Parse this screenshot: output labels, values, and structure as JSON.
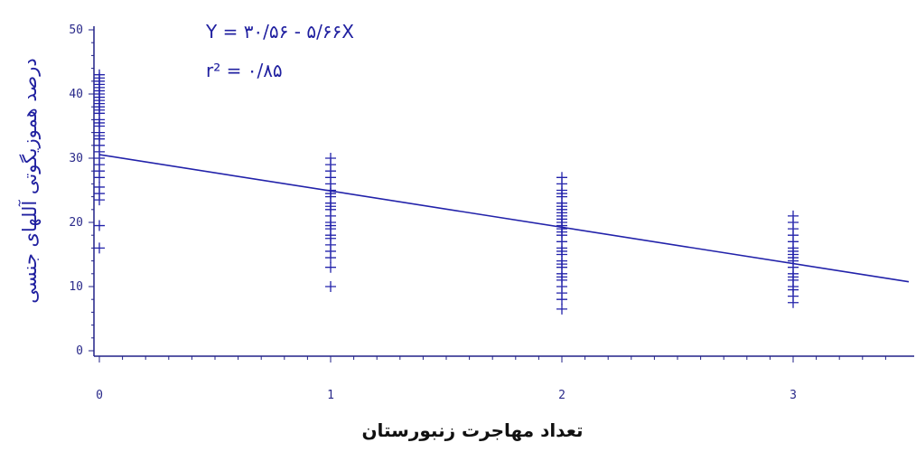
{
  "chart_data": {
    "type": "scatter",
    "title": "",
    "xlabel": "تعداد مهاجرت زنبورستان",
    "ylabel": "درصد هموزیگوتی آللهای جنسی",
    "xlim": [
      -0.05,
      3.5
    ],
    "ylim": [
      0,
      50
    ],
    "x_ticks": [
      {
        "value": 0,
        "label": "0"
      },
      {
        "value": 1,
        "label": "1"
      },
      {
        "value": 2,
        "label": "2"
      },
      {
        "value": 3,
        "label": "3"
      }
    ],
    "y_ticks": [
      {
        "value": 0,
        "label": "0"
      },
      {
        "value": 10,
        "label": "10"
      },
      {
        "value": 20,
        "label": "20"
      },
      {
        "value": 30,
        "label": "30"
      },
      {
        "value": 40,
        "label": "40"
      },
      {
        "value": 50,
        "label": "50"
      }
    ],
    "annotations": {
      "equation": "Y = ۳۰/۵۶ - ۵/۶۶X",
      "r_squared": "r² = ۰/۸۵"
    },
    "regression": {
      "intercept": 30.56,
      "slope": -5.66
    },
    "marker": "+",
    "series": [
      {
        "x": [
          0,
          0,
          0,
          0,
          0,
          0,
          0,
          0,
          0,
          0,
          0,
          0,
          0,
          0,
          0,
          0,
          0,
          0,
          0,
          0,
          0,
          0,
          0,
          0,
          0,
          0,
          0,
          0,
          0,
          0
        ],
        "y": [
          16,
          19.5,
          23.5,
          24.5,
          25.5,
          27,
          28,
          29,
          30,
          31,
          32,
          33,
          33.5,
          34,
          35,
          35.5,
          36,
          37,
          37.5,
          38,
          38.5,
          39,
          39.5,
          40,
          40.5,
          41,
          41.5,
          42,
          42.5,
          43
        ]
      },
      {
        "x": [
          1,
          1,
          1,
          1,
          1,
          1,
          1,
          1,
          1,
          1,
          1,
          1,
          1,
          1,
          1,
          1,
          1,
          1,
          1,
          1,
          1,
          1
        ],
        "y": [
          10,
          13,
          14.5,
          15.5,
          16.5,
          17.5,
          18,
          19,
          19.5,
          20,
          21,
          22,
          22.5,
          23,
          24,
          24.5,
          25,
          26,
          27,
          28,
          29,
          30
        ]
      },
      {
        "x": [
          2,
          2,
          2,
          2,
          2,
          2,
          2,
          2,
          2,
          2,
          2,
          2,
          2,
          2,
          2,
          2,
          2,
          2,
          2,
          2,
          2,
          2,
          2,
          2,
          2,
          2,
          2,
          2,
          2,
          2
        ],
        "y": [
          6.5,
          8,
          9,
          10,
          11,
          11.5,
          12,
          13,
          13.5,
          14,
          15,
          15.5,
          16,
          17,
          18,
          18.5,
          19,
          19.5,
          20,
          20.5,
          21,
          21.5,
          22,
          22.5,
          23,
          24,
          24.5,
          25,
          26,
          27
        ]
      },
      {
        "x": [
          3,
          3,
          3,
          3,
          3,
          3,
          3,
          3,
          3,
          3,
          3,
          3,
          3,
          3,
          3,
          3,
          3,
          3
        ],
        "y": [
          7.5,
          8.5,
          9.5,
          10,
          11,
          11.5,
          12,
          13,
          14,
          14.5,
          15,
          15.5,
          16,
          17,
          18,
          19,
          20,
          21
        ]
      }
    ],
    "colors": {
      "series": "#2222aa",
      "axis": "#222288",
      "ylabel": "#2020a0"
    }
  }
}
